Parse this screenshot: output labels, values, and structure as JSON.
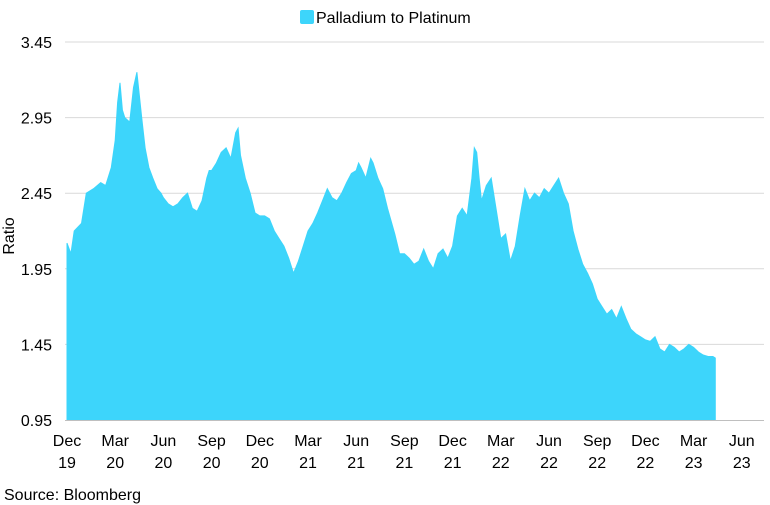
{
  "chart_data": {
    "type": "area",
    "title": "",
    "xlabel": "",
    "ylabel": "Ratio",
    "ylim": [
      0.95,
      3.45
    ],
    "yticks": [
      "3.45",
      "2.95",
      "2.45",
      "1.95",
      "1.45",
      "0.95"
    ],
    "xticks": [
      {
        "line1": "Dec",
        "line2": "19"
      },
      {
        "line1": "Mar",
        "line2": "20"
      },
      {
        "line1": "Jun",
        "line2": "20"
      },
      {
        "line1": "Sep",
        "line2": "20"
      },
      {
        "line1": "Dec",
        "line2": "20"
      },
      {
        "line1": "Mar",
        "line2": "21"
      },
      {
        "line1": "Jun",
        "line2": "21"
      },
      {
        "line1": "Sep",
        "line2": "21"
      },
      {
        "line1": "Dec",
        "line2": "21"
      },
      {
        "line1": "Mar",
        "line2": "22"
      },
      {
        "line1": "Jun",
        "line2": "22"
      },
      {
        "line1": "Sep",
        "line2": "22"
      },
      {
        "line1": "Dec",
        "line2": "22"
      },
      {
        "line1": "Mar",
        "line2": "23"
      },
      {
        "line1": "Jun",
        "line2": "23"
      }
    ],
    "grid": true,
    "legend_position": "top-center",
    "series": [
      {
        "name": "Palladium to Platinum",
        "color": "#3DD5FB",
        "points": [
          [
            0.0,
            2.12
          ],
          [
            0.08,
            2.05
          ],
          [
            0.15,
            2.2
          ],
          [
            0.3,
            2.25
          ],
          [
            0.4,
            2.45
          ],
          [
            0.55,
            2.48
          ],
          [
            0.7,
            2.52
          ],
          [
            0.8,
            2.5
          ],
          [
            0.92,
            2.62
          ],
          [
            1.0,
            2.8
          ],
          [
            1.05,
            3.05
          ],
          [
            1.1,
            3.18
          ],
          [
            1.15,
            3.0
          ],
          [
            1.2,
            2.95
          ],
          [
            1.3,
            2.92
          ],
          [
            1.38,
            3.15
          ],
          [
            1.45,
            3.25
          ],
          [
            1.5,
            3.1
          ],
          [
            1.55,
            2.95
          ],
          [
            1.62,
            2.75
          ],
          [
            1.7,
            2.62
          ],
          [
            1.78,
            2.55
          ],
          [
            1.87,
            2.48
          ],
          [
            1.95,
            2.45
          ],
          [
            2.0,
            2.42
          ],
          [
            2.1,
            2.38
          ],
          [
            2.2,
            2.36
          ],
          [
            2.3,
            2.38
          ],
          [
            2.4,
            2.42
          ],
          [
            2.5,
            2.45
          ],
          [
            2.6,
            2.35
          ],
          [
            2.7,
            2.33
          ],
          [
            2.8,
            2.4
          ],
          [
            2.9,
            2.55
          ],
          [
            2.95,
            2.6
          ],
          [
            3.0,
            2.6
          ],
          [
            3.1,
            2.65
          ],
          [
            3.2,
            2.72
          ],
          [
            3.3,
            2.75
          ],
          [
            3.4,
            2.68
          ],
          [
            3.5,
            2.85
          ],
          [
            3.55,
            2.88
          ],
          [
            3.6,
            2.7
          ],
          [
            3.7,
            2.55
          ],
          [
            3.8,
            2.45
          ],
          [
            3.9,
            2.32
          ],
          [
            4.0,
            2.3
          ],
          [
            4.1,
            2.3
          ],
          [
            4.2,
            2.28
          ],
          [
            4.3,
            2.2
          ],
          [
            4.4,
            2.15
          ],
          [
            4.5,
            2.1
          ],
          [
            4.6,
            2.02
          ],
          [
            4.7,
            1.92
          ],
          [
            4.8,
            2.0
          ],
          [
            4.9,
            2.1
          ],
          [
            5.0,
            2.2
          ],
          [
            5.1,
            2.25
          ],
          [
            5.2,
            2.32
          ],
          [
            5.3,
            2.4
          ],
          [
            5.4,
            2.48
          ],
          [
            5.5,
            2.42
          ],
          [
            5.6,
            2.4
          ],
          [
            5.7,
            2.45
          ],
          [
            5.8,
            2.52
          ],
          [
            5.9,
            2.58
          ],
          [
            6.0,
            2.6
          ],
          [
            6.05,
            2.65
          ],
          [
            6.1,
            2.62
          ],
          [
            6.2,
            2.55
          ],
          [
            6.3,
            2.68
          ],
          [
            6.35,
            2.65
          ],
          [
            6.45,
            2.55
          ],
          [
            6.55,
            2.48
          ],
          [
            6.65,
            2.35
          ],
          [
            6.8,
            2.18
          ],
          [
            6.9,
            2.05
          ],
          [
            7.0,
            2.05
          ],
          [
            7.1,
            2.02
          ],
          [
            7.2,
            1.98
          ],
          [
            7.3,
            2.0
          ],
          [
            7.4,
            2.08
          ],
          [
            7.5,
            2.0
          ],
          [
            7.6,
            1.95
          ],
          [
            7.7,
            2.05
          ],
          [
            7.8,
            2.08
          ],
          [
            7.9,
            2.02
          ],
          [
            8.0,
            2.1
          ],
          [
            8.1,
            2.3
          ],
          [
            8.2,
            2.35
          ],
          [
            8.3,
            2.3
          ],
          [
            8.4,
            2.55
          ],
          [
            8.45,
            2.75
          ],
          [
            8.5,
            2.72
          ],
          [
            8.55,
            2.55
          ],
          [
            8.6,
            2.4
          ],
          [
            8.7,
            2.5
          ],
          [
            8.8,
            2.55
          ],
          [
            8.9,
            2.35
          ],
          [
            9.0,
            2.15
          ],
          [
            9.1,
            2.18
          ],
          [
            9.2,
            2.0
          ],
          [
            9.3,
            2.1
          ],
          [
            9.4,
            2.3
          ],
          [
            9.5,
            2.48
          ],
          [
            9.6,
            2.4
          ],
          [
            9.7,
            2.45
          ],
          [
            9.8,
            2.42
          ],
          [
            9.9,
            2.48
          ],
          [
            10.0,
            2.45
          ],
          [
            10.1,
            2.5
          ],
          [
            10.2,
            2.55
          ],
          [
            10.3,
            2.45
          ],
          [
            10.4,
            2.38
          ],
          [
            10.5,
            2.2
          ],
          [
            10.6,
            2.08
          ],
          [
            10.7,
            1.98
          ],
          [
            10.8,
            1.92
          ],
          [
            10.9,
            1.85
          ],
          [
            11.0,
            1.75
          ],
          [
            11.1,
            1.7
          ],
          [
            11.2,
            1.65
          ],
          [
            11.3,
            1.68
          ],
          [
            11.4,
            1.62
          ],
          [
            11.5,
            1.7
          ],
          [
            11.6,
            1.62
          ],
          [
            11.7,
            1.55
          ],
          [
            11.8,
            1.52
          ],
          [
            11.9,
            1.5
          ],
          [
            12.0,
            1.48
          ],
          [
            12.1,
            1.47
          ],
          [
            12.2,
            1.5
          ],
          [
            12.3,
            1.42
          ],
          [
            12.4,
            1.4
          ],
          [
            12.5,
            1.45
          ],
          [
            12.6,
            1.43
          ],
          [
            12.7,
            1.4
          ],
          [
            12.8,
            1.42
          ],
          [
            12.9,
            1.45
          ],
          [
            13.0,
            1.43
          ],
          [
            13.1,
            1.4
          ],
          [
            13.2,
            1.38
          ],
          [
            13.3,
            1.37
          ],
          [
            13.4,
            1.37
          ],
          [
            13.45,
            1.36
          ]
        ]
      }
    ],
    "source": "Source: Bloomberg"
  }
}
